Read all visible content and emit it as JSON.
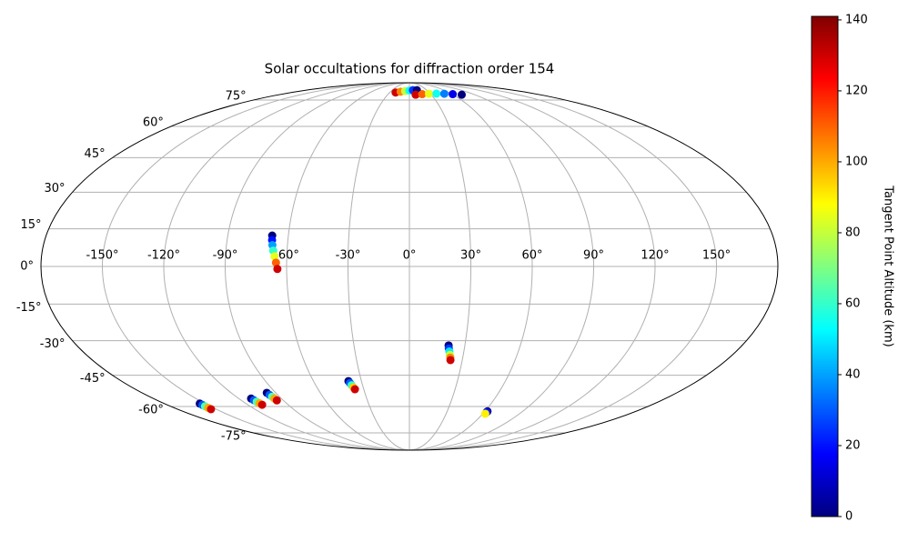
{
  "chart_data": {
    "type": "scatter",
    "projection": "mollweide",
    "title": "Solar occultations for diffraction order 154",
    "grid": true,
    "colormap": "jet",
    "xticks": [
      {
        "value": -150,
        "label": "-150°"
      },
      {
        "value": -120,
        "label": "-120°"
      },
      {
        "value": -90,
        "label": "-90°"
      },
      {
        "value": -60,
        "label": "-60°"
      },
      {
        "value": -30,
        "label": "-30°"
      },
      {
        "value": 0,
        "label": "0°"
      },
      {
        "value": 30,
        "label": "30°"
      },
      {
        "value": 60,
        "label": "60°"
      },
      {
        "value": 90,
        "label": "90°"
      },
      {
        "value": 120,
        "label": "120°"
      },
      {
        "value": 150,
        "label": "150°"
      }
    ],
    "yticks": [
      {
        "value": -75,
        "label": "-75°"
      },
      {
        "value": -60,
        "label": "-60°"
      },
      {
        "value": -45,
        "label": "-45°"
      },
      {
        "value": -30,
        "label": "-30°"
      },
      {
        "value": -15,
        "label": "-15°"
      },
      {
        "value": 0,
        "label": "0°"
      },
      {
        "value": 15,
        "label": "15°"
      },
      {
        "value": 30,
        "label": "30°"
      },
      {
        "value": 45,
        "label": "45°"
      },
      {
        "value": 60,
        "label": "60°"
      },
      {
        "value": 75,
        "label": "75°"
      }
    ],
    "colorbar": {
      "label": "Tangent Point Altitude (km)",
      "lim": [
        0,
        141
      ],
      "ticks": [
        0,
        20,
        40,
        60,
        80,
        100,
        120,
        140
      ]
    },
    "x": [
      -68,
      -67.8,
      -67.4,
      -66.8,
      -66,
      -65.2,
      -64.5,
      21.2,
      21.5,
      22,
      22.5,
      23,
      23.3,
      -38.1,
      -37.6,
      -37,
      -36.4,
      -35.8,
      62,
      62,
      62,
      -96,
      -95.6,
      -95.2,
      -94.9,
      -94.6,
      -111.3,
      -110.8,
      -110.3,
      -109.8,
      -109.3,
      -153.9,
      -153.9,
      -154,
      -154,
      -154,
      -21,
      -14,
      -7,
      0,
      6,
      13,
      8.6,
      18,
      28,
      39,
      50,
      61,
      72
    ],
    "y": [
      12.3,
      10.5,
      8.5,
      6.3,
      4,
      1.5,
      -1,
      -32,
      -33.3,
      -34.6,
      -36,
      -37.2,
      -38.3,
      -47.7,
      -48.6,
      -49.6,
      -50.6,
      -51.5,
      -62.5,
      -63,
      -63.8,
      -53.2,
      -54.2,
      -55.1,
      -56,
      -56.9,
      -56,
      -56.8,
      -57.6,
      -58.4,
      -59.1,
      -58.5,
      -59.2,
      -59.9,
      -60.7,
      -61.4,
      80.2,
      80.8,
      81.3,
      81.7,
      82,
      82,
      78.6,
      79,
      79.3,
      79.4,
      79.3,
      79,
      78.6
    ],
    "c": [
      0,
      20,
      40,
      60,
      85,
      110,
      130,
      0,
      25,
      50,
      80,
      105,
      130,
      0,
      30,
      60,
      95,
      130,
      0,
      20,
      90,
      0,
      30,
      65,
      100,
      130,
      0,
      30,
      65,
      100,
      130,
      0,
      30,
      65,
      100,
      130,
      130,
      105,
      80,
      55,
      25,
      0,
      130,
      110,
      85,
      55,
      35,
      15,
      0
    ]
  }
}
